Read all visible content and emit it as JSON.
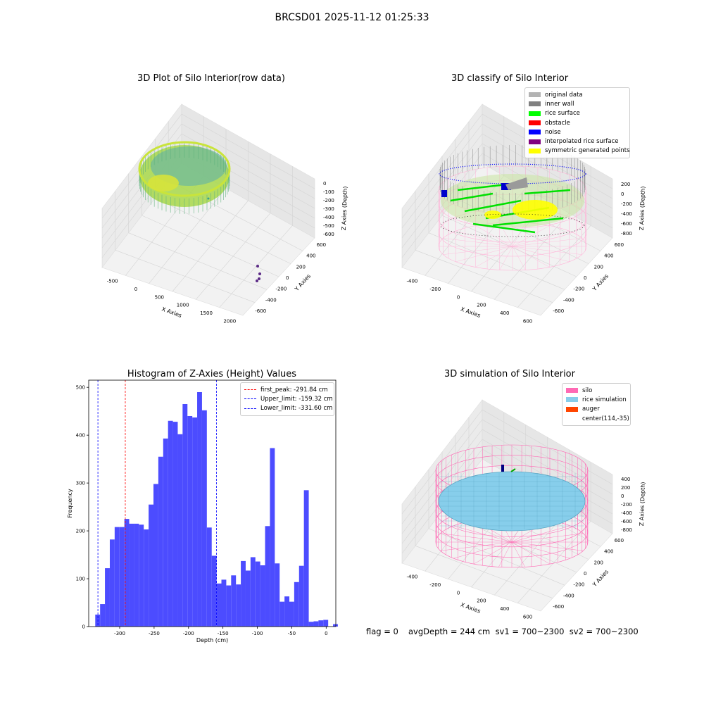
{
  "suptitle": "BRCSD01 2025-11-12 01:25:33",
  "panel_raw": {
    "title": "3D Plot of Silo Interior(row data)",
    "xlabel": "X Axies",
    "ylabel": "Y Axies",
    "zlabel": "Z Axies (Depth)",
    "xticks": [
      "-500",
      "0",
      "500",
      "1000",
      "1500",
      "2000"
    ],
    "yticks": [
      "600",
      "400",
      "200",
      "0",
      "-200",
      "-400",
      "-600"
    ],
    "zticks": [
      "0",
      "-100",
      "-200",
      "-300",
      "-400",
      "-500",
      "-600"
    ]
  },
  "panel_classify": {
    "title": "3D classify of Silo Interior",
    "xlabel": "X Axies",
    "ylabel": "Y Axies",
    "zlabel": "Z Axies (Depth)",
    "xticks": [
      "-400",
      "-200",
      "0",
      "200",
      "400",
      "600"
    ],
    "yticks": [
      "600",
      "400",
      "200",
      "0",
      "-200",
      "-400",
      "-600"
    ],
    "zticks": [
      "200",
      "0",
      "-200",
      "-400",
      "-600",
      "-800"
    ],
    "legend": [
      {
        "label": "original data",
        "color": "#b3b3b3"
      },
      {
        "label": "inner wall",
        "color": "#808080"
      },
      {
        "label": "rice surface",
        "color": "#00ff00"
      },
      {
        "label": "obstacle",
        "color": "#ff0000"
      },
      {
        "label": "noise",
        "color": "#0000ff"
      },
      {
        "label": "interpolated rice surface",
        "color": "#800080"
      },
      {
        "label": "symmetric generated points",
        "color": "#ffff00"
      }
    ]
  },
  "panel_sim": {
    "title": "3D simulation of Silo Interior",
    "xlabel": "X Axies",
    "ylabel": "Y Axies",
    "zlabel": "Z Axies (Depth)",
    "xticks": [
      "-400",
      "-200",
      "0",
      "200",
      "400",
      "600"
    ],
    "yticks": [
      "600",
      "400",
      "200",
      "0",
      "-200",
      "-400",
      "-600"
    ],
    "zticks": [
      "400",
      "200",
      "0",
      "-200",
      "-400",
      "-600",
      "-800"
    ],
    "legend": [
      {
        "label": "silo",
        "color": "#ff69b4"
      },
      {
        "label": "rice simulation",
        "color": "#87ceeb"
      },
      {
        "label": "auger",
        "color": "#ff4500"
      },
      {
        "label": "center(114,-35)",
        "color": ""
      }
    ]
  },
  "footer": {
    "flag": "flag = 0",
    "avg": "avgDepth = 244 cm  sv1 = 700~2300  sv2 = 700~2300"
  },
  "chart_data": [
    {
      "type": "bar",
      "title": "Histogram of Z-Axies (Height) Values",
      "xlabel": "Depth (cm)",
      "ylabel": "Frequency",
      "bar_color": "#4c4cff",
      "bin_start": -335.5,
      "bin_width": 7.05,
      "values": [
        25,
        47,
        122,
        182,
        208,
        208,
        225,
        215,
        215,
        213,
        203,
        255,
        298,
        355,
        393,
        430,
        428,
        402,
        465,
        440,
        437,
        490,
        452,
        207,
        148,
        90,
        98,
        86,
        107,
        88,
        137,
        117,
        145,
        136,
        128,
        210,
        373,
        132,
        52,
        63,
        52,
        93,
        127,
        285,
        10,
        11,
        13,
        14,
        0,
        5
      ],
      "xlim": [
        -345,
        14
      ],
      "ylim": [
        0,
        515
      ],
      "xticks": [
        -300,
        -250,
        -200,
        -150,
        -100,
        -50,
        0
      ],
      "yticks": [
        0,
        100,
        200,
        300,
        400,
        500
      ],
      "vlines": [
        {
          "label": "first_peak: -291.84 cm",
          "x": -291.84,
          "color": "#ff0000"
        },
        {
          "label": "Upper_limit: -159.32 cm",
          "x": -159.32,
          "color": "#0000ff"
        },
        {
          "label": "Lower_limit: -331.60 cm",
          "x": -331.6,
          "color": "#0000ff"
        }
      ]
    }
  ]
}
